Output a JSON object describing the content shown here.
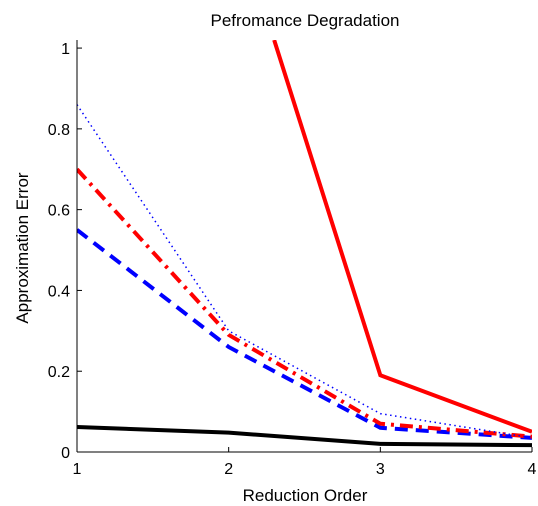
{
  "chart_data": {
    "type": "line",
    "title": "Pefromance Degradation",
    "xlabel": "Reduction Order",
    "ylabel": "Approximation Error",
    "xlim": [
      1,
      4
    ],
    "ylim": [
      0,
      1.02
    ],
    "xticks": [
      1,
      2,
      3,
      4
    ],
    "xtick_labels": [
      "1",
      "2",
      "3",
      "4"
    ],
    "yticks": [
      0,
      0.2,
      0.4,
      0.6,
      0.8,
      1
    ],
    "ytick_labels": [
      "0",
      "0.2",
      "0.4",
      "0.6",
      "0.8",
      "1"
    ],
    "grid": false,
    "legend": "none",
    "series": [
      {
        "x": [
          1,
          2,
          3,
          4
        ],
        "values": [
          0.062,
          0.048,
          0.02,
          0.017
        ],
        "color": "#000000",
        "style": "solid",
        "width": 4
      },
      {
        "x": [
          1,
          2,
          3,
          4
        ],
        "values": [
          0.55,
          0.26,
          0.06,
          0.035
        ],
        "color": "#0000ff",
        "style": "dashed",
        "width": 4
      },
      {
        "x": [
          1,
          2,
          3,
          4
        ],
        "values": [
          0.7,
          0.29,
          0.07,
          0.038
        ],
        "color": "#ff0000",
        "style": "dashdot",
        "width": 4
      },
      {
        "x": [
          1,
          2,
          3,
          4
        ],
        "values": [
          0.86,
          0.3,
          0.095,
          0.035
        ],
        "color": "#0000ff",
        "style": "dotted",
        "width": 1.5
      },
      {
        "x": [
          2.3,
          3,
          4
        ],
        "values": [
          1.02,
          0.19,
          0.05
        ],
        "color": "#ff0000",
        "style": "solid",
        "width": 4
      }
    ]
  }
}
